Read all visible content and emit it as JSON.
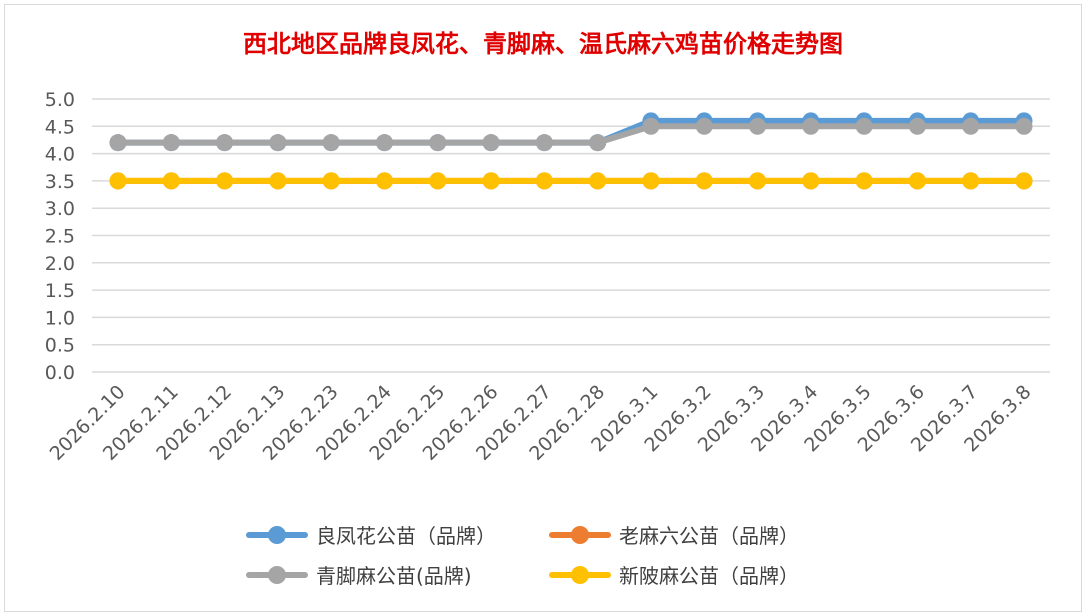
{
  "chart_data": {
    "type": "line",
    "title": "西北地区品牌良凤花、青脚麻、温氏麻六鸡苗价格走势图",
    "xlabel": "",
    "ylabel": "",
    "ylim": [
      0,
      5.0
    ],
    "yticks": [
      "0.0",
      "0.5",
      "1.0",
      "1.5",
      "2.0",
      "2.5",
      "3.0",
      "3.5",
      "4.0",
      "4.5",
      "5.0"
    ],
    "grid": true,
    "legend_position": "bottom",
    "categories": [
      "2026.2.10",
      "2026.2.11",
      "2026.2.12",
      "2026.2.13",
      "2026.2.23",
      "2026.2.24",
      "2026.2.25",
      "2026.2.26",
      "2026.2.27",
      "2026.2.28",
      "2026.3.1",
      "2026.3.2",
      "2026.3.3",
      "2026.3.4",
      "2026.3.5",
      "2026.3.6",
      "2026.3.7",
      "2026.3.8"
    ],
    "series": [
      {
        "name": "良凤花公苗（品牌）",
        "color": "#5b9bd5",
        "values": [
          4.2,
          4.2,
          4.2,
          4.2,
          4.2,
          4.2,
          4.2,
          4.2,
          4.2,
          4.2,
          4.6,
          4.6,
          4.6,
          4.6,
          4.6,
          4.6,
          4.6,
          4.6
        ]
      },
      {
        "name": "老麻六公苗（品牌）",
        "color": "#ed7d31",
        "values": [
          3.5,
          3.5,
          3.5,
          3.5,
          3.5,
          3.5,
          3.5,
          3.5,
          3.5,
          3.5,
          3.5,
          3.5,
          3.5,
          3.5,
          3.5,
          3.5,
          3.5,
          3.5
        ]
      },
      {
        "name": "青脚麻公苗(品牌)",
        "color": "#a5a5a5",
        "values": [
          4.2,
          4.2,
          4.2,
          4.2,
          4.2,
          4.2,
          4.2,
          4.2,
          4.2,
          4.2,
          4.5,
          4.5,
          4.5,
          4.5,
          4.5,
          4.5,
          4.5,
          4.5
        ]
      },
      {
        "name": "新陂麻公苗（品牌）",
        "color": "#ffc000",
        "values": [
          3.5,
          3.5,
          3.5,
          3.5,
          3.5,
          3.5,
          3.5,
          3.5,
          3.5,
          3.5,
          3.5,
          3.5,
          3.5,
          3.5,
          3.5,
          3.5,
          3.5,
          3.5
        ]
      }
    ]
  }
}
